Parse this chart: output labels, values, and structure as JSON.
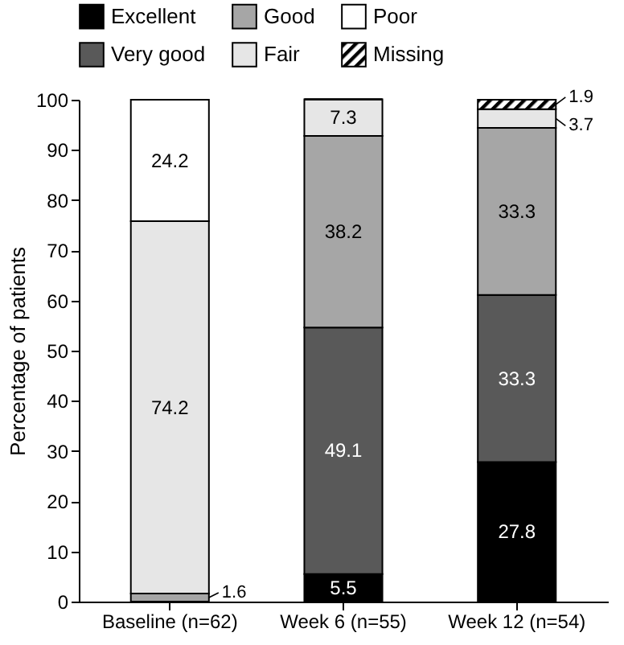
{
  "chart_data": {
    "type": "bar",
    "stacked": true,
    "ylabel": "Percentage of patients",
    "categories": [
      "Baseline (n=62)",
      "Week 6 (n=55)",
      "Week 12 (n=54)"
    ],
    "ylim": [
      0,
      100
    ],
    "yticks": [
      0,
      10,
      20,
      30,
      40,
      50,
      60,
      70,
      80,
      90,
      100
    ],
    "grid": false,
    "legend": "top",
    "series": [
      {
        "name": "Excellent",
        "color": "#000000",
        "values": [
          0,
          5.5,
          27.8
        ],
        "value_labels": [
          null,
          "5.5",
          "27.8"
        ]
      },
      {
        "name": "Very good",
        "color": "#595959",
        "values": [
          0,
          49.1,
          33.3
        ],
        "value_labels": [
          null,
          "49.1",
          "33.3"
        ]
      },
      {
        "name": "Good",
        "color": "#a6a6a6",
        "values": [
          1.6,
          38.2,
          33.3
        ],
        "value_labels": [
          "1.6",
          "38.2",
          "33.3"
        ]
      },
      {
        "name": "Fair",
        "color": "#e6e6e6",
        "values": [
          74.2,
          7.3,
          3.7
        ],
        "value_labels": [
          "74.2",
          "7.3",
          "3.7"
        ]
      },
      {
        "name": "Poor",
        "color": "#ffffff",
        "values": [
          24.2,
          0,
          0
        ],
        "value_labels": [
          "24.2",
          null,
          null
        ]
      },
      {
        "name": "Missing",
        "color": "#000000",
        "values": [
          0,
          0,
          1.9
        ],
        "value_labels": [
          null,
          null,
          "1.9"
        ]
      }
    ]
  }
}
